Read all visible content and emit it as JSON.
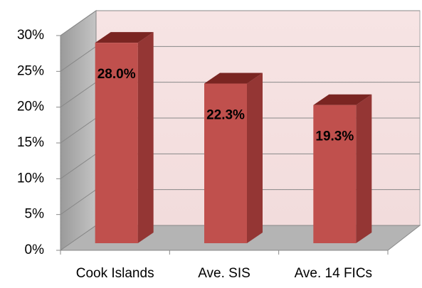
{
  "chart_data": {
    "type": "bar3d",
    "categories": [
      "Cook Islands",
      "Ave. SIS",
      "Ave. 14 FICs"
    ],
    "values": [
      28.0,
      22.3,
      19.3
    ],
    "value_labels": [
      "28.0%",
      "22.3%",
      "19.3%"
    ],
    "color": "#c0504d",
    "ylim": [
      0,
      30
    ],
    "yticks": [
      {
        "value": 0,
        "label": "0%"
      },
      {
        "value": 5,
        "label": "5%"
      },
      {
        "value": 10,
        "label": "10%"
      },
      {
        "value": 15,
        "label": "15%"
      },
      {
        "value": 20,
        "label": "20%"
      },
      {
        "value": 25,
        "label": "25%"
      },
      {
        "value": 30,
        "label": "30%"
      }
    ],
    "grid": true
  }
}
